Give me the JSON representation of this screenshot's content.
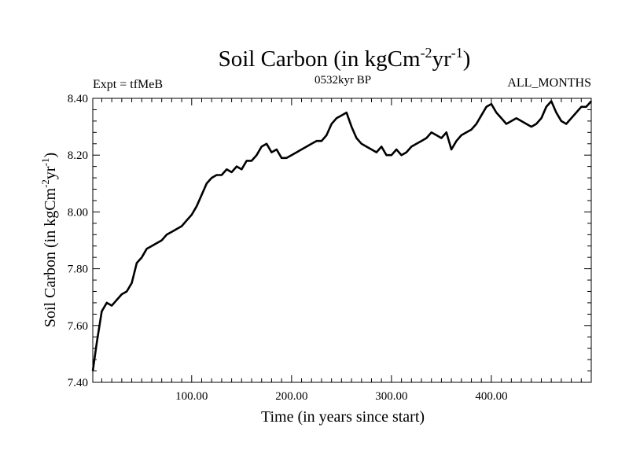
{
  "chart_data": {
    "type": "line",
    "title": {
      "prefix": "Soil Carbon (in kgCm",
      "sup1": "-2",
      "mid": "yr",
      "sup2": "-1",
      "suffix": ")"
    },
    "subtitle_left": "Expt = tfMeB",
    "subtitle_center": "0532kyr BP",
    "subtitle_right": "ALL_MONTHS",
    "xlabel": "Time (in years since start)",
    "ylabel": {
      "prefix": "Soil Carbon (in kgCm",
      "sup1": "-2",
      "mid": "yr",
      "sup2": "-1",
      "suffix": ")"
    },
    "xlim": [
      1,
      500
    ],
    "ylim": [
      7.4,
      8.4
    ],
    "x_ticks": [
      100,
      200,
      300,
      400
    ],
    "x_tick_labels": [
      "100.00",
      "200.00",
      "300.00",
      "400.00"
    ],
    "y_ticks": [
      7.4,
      7.6,
      7.8,
      8.0,
      8.2,
      8.4
    ],
    "y_tick_labels": [
      "7.40",
      "7.60",
      "7.80",
      "8.00",
      "8.20",
      "8.40"
    ],
    "grid": false,
    "series": [
      {
        "color": "#000000",
        "x": [
          1,
          5,
          10,
          15,
          20,
          25,
          30,
          35,
          40,
          45,
          50,
          55,
          60,
          65,
          70,
          75,
          80,
          85,
          90,
          95,
          100,
          105,
          110,
          115,
          120,
          125,
          130,
          135,
          140,
          145,
          150,
          155,
          160,
          165,
          170,
          175,
          180,
          185,
          190,
          195,
          200,
          205,
          210,
          215,
          220,
          225,
          230,
          235,
          240,
          245,
          250,
          255,
          260,
          265,
          270,
          275,
          280,
          285,
          290,
          295,
          300,
          305,
          310,
          315,
          320,
          325,
          330,
          335,
          340,
          345,
          350,
          355,
          360,
          365,
          370,
          375,
          380,
          385,
          390,
          395,
          400,
          405,
          410,
          415,
          420,
          425,
          430,
          435,
          440,
          445,
          450,
          455,
          460,
          465,
          470,
          475,
          480,
          485,
          490,
          495,
          500
        ],
        "y": [
          7.44,
          7.54,
          7.65,
          7.68,
          7.67,
          7.69,
          7.71,
          7.72,
          7.75,
          7.82,
          7.84,
          7.87,
          7.88,
          7.89,
          7.9,
          7.92,
          7.93,
          7.94,
          7.95,
          7.97,
          7.99,
          8.02,
          8.06,
          8.1,
          8.12,
          8.13,
          8.13,
          8.15,
          8.14,
          8.16,
          8.15,
          8.18,
          8.18,
          8.2,
          8.23,
          8.24,
          8.21,
          8.22,
          8.19,
          8.19,
          8.2,
          8.21,
          8.22,
          8.23,
          8.24,
          8.25,
          8.25,
          8.27,
          8.31,
          8.33,
          8.34,
          8.35,
          8.3,
          8.26,
          8.24,
          8.23,
          8.22,
          8.21,
          8.23,
          8.2,
          8.2,
          8.22,
          8.2,
          8.21,
          8.23,
          8.24,
          8.25,
          8.26,
          8.28,
          8.27,
          8.26,
          8.28,
          8.22,
          8.25,
          8.27,
          8.28,
          8.29,
          8.31,
          8.34,
          8.37,
          8.38,
          8.35,
          8.33,
          8.31,
          8.32,
          8.33,
          8.32,
          8.31,
          8.3,
          8.31,
          8.33,
          8.37,
          8.39,
          8.35,
          8.32,
          8.31,
          8.33,
          8.35,
          8.37,
          8.37,
          8.39
        ]
      }
    ]
  }
}
